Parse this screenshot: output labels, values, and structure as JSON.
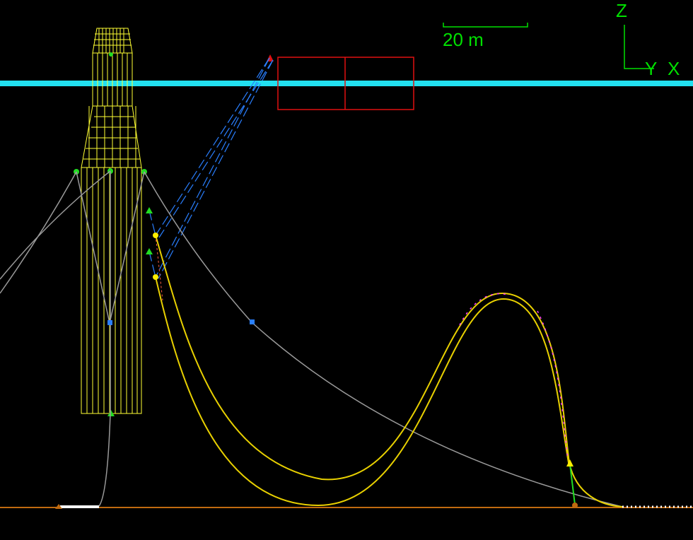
{
  "scale_bar": {
    "label": "20 m"
  },
  "axes": {
    "z": "Z",
    "y": "Y",
    "x": "X"
  }
}
